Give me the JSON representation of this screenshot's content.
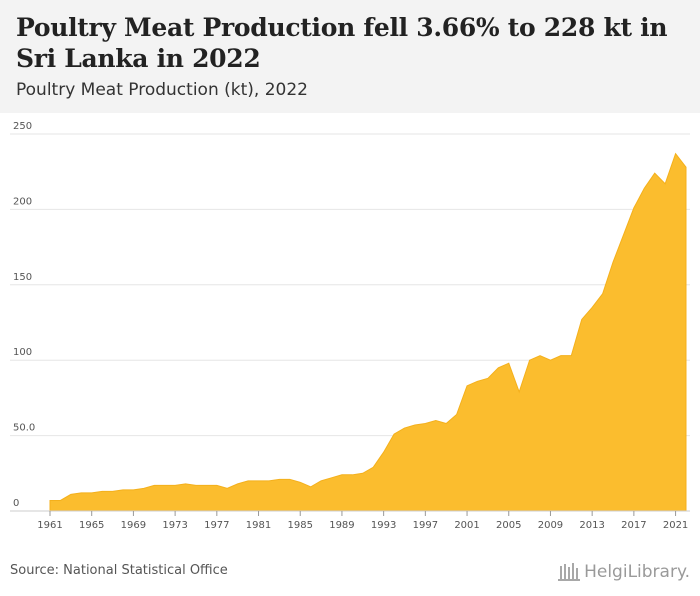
{
  "header": {
    "title": "Poultry Meat Production fell 3.66% to 228 kt in Sri Lanka in 2022",
    "subtitle": "Poultry Meat Production (kt), 2022"
  },
  "footer": {
    "source": "Source: National Statistical Office",
    "brand": "HelgiLibrary."
  },
  "colors": {
    "fill": "#fbbd2e",
    "stroke": "#f4b01c",
    "grid": "#e6e6e6",
    "header_bg": "#f3f3f3"
  },
  "chart_data": {
    "type": "area",
    "title": "Poultry Meat Production (kt), 2022",
    "xlabel": "",
    "ylabel": "",
    "ylim": [
      0,
      250
    ],
    "yticks": [
      0,
      50,
      100,
      150,
      200,
      250
    ],
    "ytick_labels": [
      "0",
      "50.0",
      "100",
      "150",
      "200",
      "250"
    ],
    "xticks": [
      1961,
      1965,
      1969,
      1973,
      1977,
      1981,
      1985,
      1989,
      1993,
      1997,
      2001,
      2005,
      2009,
      2013,
      2017,
      2021
    ],
    "grid": true,
    "x": [
      1961,
      1962,
      1963,
      1964,
      1965,
      1966,
      1967,
      1968,
      1969,
      1970,
      1971,
      1972,
      1973,
      1974,
      1975,
      1976,
      1977,
      1978,
      1979,
      1980,
      1981,
      1982,
      1983,
      1984,
      1985,
      1986,
      1987,
      1988,
      1989,
      1990,
      1991,
      1992,
      1993,
      1994,
      1995,
      1996,
      1997,
      1998,
      1999,
      2000,
      2001,
      2002,
      2003,
      2004,
      2005,
      2006,
      2007,
      2008,
      2009,
      2010,
      2011,
      2012,
      2013,
      2014,
      2015,
      2016,
      2017,
      2018,
      2019,
      2020,
      2021,
      2022
    ],
    "values": [
      7,
      7,
      11,
      12,
      12,
      13,
      13,
      14,
      14,
      15,
      17,
      17,
      17,
      18,
      17,
      17,
      17,
      15,
      18,
      20,
      20,
      20,
      21,
      21,
      19,
      16,
      20,
      22,
      24,
      24,
      25,
      29,
      39,
      51,
      55,
      57,
      58,
      60,
      58,
      64,
      83,
      86,
      88,
      95,
      98,
      79,
      100,
      103,
      100,
      103,
      103,
      127,
      135,
      144,
      165,
      183,
      201,
      214,
      224,
      217,
      237,
      228
    ]
  }
}
